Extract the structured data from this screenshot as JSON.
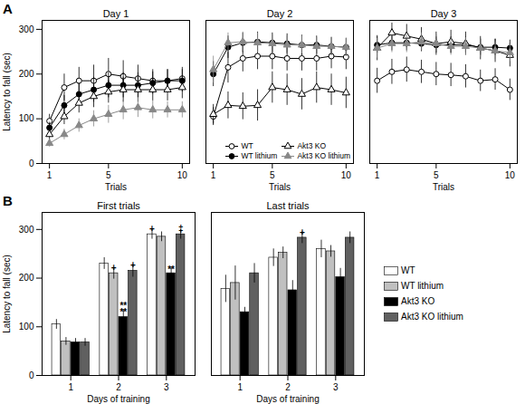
{
  "chart_data": [
    {
      "type": "line",
      "panel_label": "A",
      "title": "Day 1",
      "xlabel": "Trials",
      "ylabel": "Latency to fall (sec)",
      "x": [
        1,
        2,
        3,
        4,
        5,
        6,
        7,
        8,
        9,
        10
      ],
      "xlim": [
        0.5,
        10.5
      ],
      "xticks": [
        1,
        5,
        10
      ],
      "ylim": [
        0,
        320
      ],
      "yticks": [
        0,
        100,
        200,
        300
      ],
      "series": [
        {
          "name": "WT",
          "color": "black",
          "marker": "circle-open",
          "values": [
            95,
            170,
            185,
            185,
            200,
            195,
            190,
            185,
            185,
            190
          ],
          "errors": [
            15,
            30,
            30,
            35,
            35,
            35,
            30,
            25,
            25,
            25
          ]
        },
        {
          "name": "WT lithium",
          "color": "black",
          "marker": "circle",
          "values": [
            80,
            130,
            155,
            165,
            175,
            175,
            175,
            180,
            185,
            185
          ],
          "errors": [
            12,
            22,
            25,
            28,
            28,
            28,
            28,
            25,
            25,
            25
          ]
        },
        {
          "name": "Akt3 KO",
          "color": "black",
          "marker": "triangle-open",
          "values": [
            65,
            105,
            135,
            150,
            160,
            165,
            165,
            165,
            165,
            170
          ],
          "errors": [
            12,
            18,
            22,
            25,
            25,
            28,
            28,
            25,
            25,
            25
          ]
        },
        {
          "name": "Akt3 KO lithium",
          "color": "#888888",
          "marker": "triangle",
          "values": [
            45,
            65,
            85,
            100,
            110,
            120,
            125,
            120,
            120,
            120
          ],
          "errors": [
            8,
            12,
            15,
            18,
            20,
            22,
            22,
            20,
            18,
            18
          ]
        }
      ]
    },
    {
      "type": "line",
      "title": "Day 2",
      "xlabel": "Trials",
      "tick_labels": "x",
      "legend": "lower right",
      "x": [
        1,
        2,
        3,
        4,
        5,
        6,
        7,
        8,
        9,
        10
      ],
      "xlim": [
        0.5,
        10.5
      ],
      "xticks": [
        1,
        5,
        10
      ],
      "ylim": [
        0,
        320
      ],
      "yticks": [
        0,
        100,
        200,
        300
      ],
      "series": [
        {
          "name": "WT",
          "color": "black",
          "marker": "circle-open",
          "values": [
            105,
            215,
            235,
            240,
            240,
            235,
            235,
            235,
            240,
            238
          ],
          "errors": [
            20,
            35,
            30,
            30,
            30,
            28,
            28,
            28,
            28,
            28
          ]
        },
        {
          "name": "WT lithium",
          "color": "black",
          "marker": "circle",
          "values": [
            200,
            260,
            270,
            272,
            270,
            268,
            265,
            265,
            262,
            260
          ],
          "errors": [
            28,
            25,
            22,
            22,
            22,
            22,
            22,
            20,
            20,
            20
          ]
        },
        {
          "name": "Akt3 KO",
          "color": "black",
          "marker": "triangle-open",
          "values": [
            110,
            130,
            128,
            130,
            170,
            165,
            155,
            170,
            165,
            158
          ],
          "errors": [
            22,
            30,
            30,
            35,
            35,
            35,
            35,
            35,
            35,
            35
          ]
        },
        {
          "name": "Akt3 KO lithium",
          "color": "#888888",
          "marker": "triangle",
          "values": [
            210,
            270,
            272,
            270,
            268,
            265,
            265,
            262,
            262,
            260
          ],
          "errors": [
            30,
            22,
            22,
            22,
            20,
            20,
            20,
            20,
            20,
            20
          ]
        }
      ]
    },
    {
      "type": "line",
      "title": "Day 3",
      "xlabel": "Trials",
      "tick_labels": "x",
      "x": [
        1,
        2,
        3,
        4,
        5,
        6,
        7,
        8,
        9,
        10
      ],
      "xlim": [
        0.5,
        10.5
      ],
      "xticks": [
        1,
        5,
        10
      ],
      "ylim": [
        0,
        320
      ],
      "yticks": [
        0,
        100,
        200,
        300
      ],
      "series": [
        {
          "name": "WT",
          "color": "black",
          "marker": "circle-open",
          "values": [
            185,
            205,
            210,
            205,
            200,
            198,
            195,
            185,
            188,
            165
          ],
          "errors": [
            28,
            28,
            28,
            26,
            26,
            26,
            26,
            24,
            24,
            24
          ]
        },
        {
          "name": "WT lithium",
          "color": "black",
          "marker": "circle",
          "values": [
            265,
            270,
            270,
            268,
            265,
            265,
            265,
            260,
            260,
            258
          ],
          "errors": [
            18,
            18,
            18,
            18,
            18,
            18,
            18,
            18,
            18,
            18
          ]
        },
        {
          "name": "Akt3 KO",
          "color": "black",
          "marker": "triangle-open",
          "values": [
            258,
            292,
            285,
            278,
            268,
            272,
            268,
            258,
            252,
            242
          ],
          "errors": [
            28,
            22,
            26,
            26,
            26,
            26,
            26,
            26,
            26,
            26
          ]
        },
        {
          "name": "Akt3 KO lithium",
          "color": "#888888",
          "marker": "triangle",
          "values": [
            258,
            268,
            268,
            272,
            268,
            262,
            262,
            258,
            252,
            248
          ],
          "errors": [
            22,
            20,
            20,
            20,
            20,
            20,
            20,
            20,
            20,
            20
          ]
        }
      ]
    },
    {
      "type": "bar",
      "panel_label": "B",
      "title": "First trials",
      "xlabel": "Days of training",
      "ylabel": "Latency to fall (sec)",
      "categories": [
        1,
        2,
        3
      ],
      "ylim": [
        0,
        335
      ],
      "yticks": [
        0,
        100,
        200,
        300
      ],
      "series": [
        {
          "name": "WT",
          "color": "white",
          "values": [
            105,
            230,
            290
          ],
          "errors": [
            10,
            12,
            10
          ]
        },
        {
          "name": "WT lithium",
          "color": "#c0c0c0",
          "values": [
            70,
            210,
            285
          ],
          "errors": [
            8,
            12,
            10
          ]
        },
        {
          "name": "Akt3 KO",
          "color": "black",
          "values": [
            68,
            120,
            210
          ],
          "errors": [
            8,
            15,
            13
          ]
        },
        {
          "name": "Akt3 KO lithium",
          "color": "#606060",
          "values": [
            68,
            215,
            290
          ],
          "errors": [
            8,
            13,
            10
          ]
        }
      ],
      "annotations": [
        {
          "text": "**",
          "x": 2,
          "series": "Akt3 KO",
          "y": 124
        },
        {
          "text": "**",
          "x": 2,
          "series": "Akt3 KO",
          "y": 137
        },
        {
          "text": "+",
          "x": 2,
          "series": "WT lithium",
          "y": 215
        },
        {
          "text": "+",
          "x": 2,
          "series": "Akt3 KO lithium",
          "y": 221
        },
        {
          "text": "**",
          "x": 3,
          "series": "Akt3 KO",
          "y": 212
        },
        {
          "text": "+",
          "x": 3,
          "series": "WT",
          "y": 295
        },
        {
          "text": "‡",
          "x": 3,
          "series": "Akt3 KO lithium",
          "y": 295
        }
      ]
    },
    {
      "type": "bar",
      "title": "Last trials",
      "xlabel": "Days of training",
      "tick_labels": "x",
      "legend": "right",
      "categories": [
        1,
        2,
        3
      ],
      "ylim": [
        0,
        335
      ],
      "yticks": [
        0,
        100,
        200,
        300
      ],
      "series": [
        {
          "name": "WT",
          "color": "white",
          "values": [
            178,
            242,
            260
          ],
          "errors": [
            28,
            18,
            18
          ]
        },
        {
          "name": "WT lithium",
          "color": "#c0c0c0",
          "values": [
            190,
            252,
            255
          ],
          "errors": [
            35,
            12,
            12
          ]
        },
        {
          "name": "Akt3 KO",
          "color": "black",
          "values": [
            130,
            175,
            202
          ],
          "errors": [
            10,
            20,
            18
          ]
        },
        {
          "name": "Akt3 KO lithium",
          "color": "#606060",
          "values": [
            210,
            283,
            283
          ],
          "errors": [
            20,
            12,
            12
          ]
        }
      ],
      "annotations": [
        {
          "text": "+",
          "x": 2,
          "series": "Akt3 KO lithium",
          "y": 288
        }
      ]
    }
  ]
}
